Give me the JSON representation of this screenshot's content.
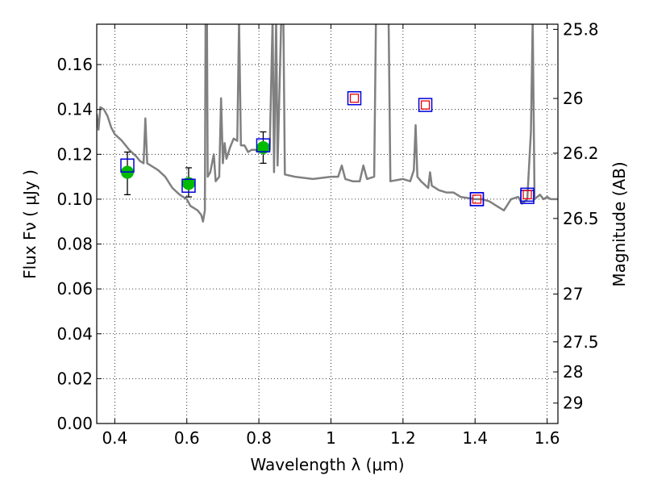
{
  "chart_data": {
    "type": "line",
    "title": "",
    "xlabel": "Wavelength  λ (μm)",
    "ylabel": "Flux  Fν  ( μJy )",
    "ylabel_right": "Magnitude (AB)",
    "xlim": [
      0.35,
      1.63
    ],
    "ylim": [
      0.0,
      0.178
    ],
    "grid": true,
    "grid_style": "dotted",
    "x_ticks": [
      0.4,
      0.6,
      0.8,
      1.0,
      1.2,
      1.4,
      1.6
    ],
    "x_tick_labels": [
      "0.4",
      "0.6",
      "0.8",
      "1",
      "1.2",
      "1.4",
      "1.6"
    ],
    "y_ticks": [
      0.0,
      0.02,
      0.04,
      0.06,
      0.08,
      0.1,
      0.12,
      0.14,
      0.16
    ],
    "y_tick_labels": [
      "0.00",
      "0.02",
      "0.04",
      "0.06",
      "0.08",
      "0.10",
      "0.12",
      "0.14",
      "0.16"
    ],
    "right_ticks": [
      {
        "label": "25.8",
        "flux": 0.1757
      },
      {
        "label": "26",
        "flux": 0.1449
      },
      {
        "label": "26.2",
        "flux": 0.1205
      },
      {
        "label": "26.5",
        "flux": 0.0914
      },
      {
        "label": "27",
        "flux": 0.0577
      },
      {
        "label": "27.5",
        "flux": 0.0364
      },
      {
        "label": "28",
        "flux": 0.023
      },
      {
        "label": "29",
        "flux": 0.0091
      }
    ],
    "series": [
      {
        "kind": "model-spectrum",
        "color": "#808080",
        "points": [
          [
            0.35,
            0.138
          ],
          [
            0.355,
            0.131
          ],
          [
            0.36,
            0.141
          ],
          [
            0.37,
            0.14
          ],
          [
            0.38,
            0.137
          ],
          [
            0.39,
            0.132
          ],
          [
            0.4,
            0.129
          ],
          [
            0.42,
            0.126
          ],
          [
            0.44,
            0.122
          ],
          [
            0.46,
            0.119
          ],
          [
            0.47,
            0.117
          ],
          [
            0.48,
            0.116
          ],
          [
            0.485,
            0.136
          ],
          [
            0.49,
            0.116
          ],
          [
            0.5,
            0.115
          ],
          [
            0.52,
            0.113
          ],
          [
            0.54,
            0.11
          ],
          [
            0.56,
            0.105
          ],
          [
            0.58,
            0.102
          ],
          [
            0.6,
            0.1
          ],
          [
            0.61,
            0.097
          ],
          [
            0.62,
            0.096
          ],
          [
            0.63,
            0.095
          ],
          [
            0.64,
            0.093
          ],
          [
            0.645,
            0.09
          ],
          [
            0.65,
            0.095
          ],
          [
            0.652,
            0.18
          ],
          [
            0.656,
            0.18
          ],
          [
            0.658,
            0.11
          ],
          [
            0.665,
            0.112
          ],
          [
            0.675,
            0.12
          ],
          [
            0.68,
            0.108
          ],
          [
            0.69,
            0.11
          ],
          [
            0.695,
            0.145
          ],
          [
            0.7,
            0.116
          ],
          [
            0.705,
            0.125
          ],
          [
            0.71,
            0.118
          ],
          [
            0.72,
            0.123
          ],
          [
            0.73,
            0.127
          ],
          [
            0.74,
            0.126
          ],
          [
            0.745,
            0.18
          ],
          [
            0.75,
            0.124
          ],
          [
            0.76,
            0.124
          ],
          [
            0.77,
            0.121
          ],
          [
            0.78,
            0.122
          ],
          [
            0.79,
            0.122
          ],
          [
            0.8,
            0.121
          ],
          [
            0.81,
            0.122
          ],
          [
            0.82,
            0.123
          ],
          [
            0.83,
            0.122
          ],
          [
            0.838,
            0.18
          ],
          [
            0.842,
            0.112
          ],
          [
            0.848,
            0.18
          ],
          [
            0.852,
            0.115
          ],
          [
            0.862,
            0.18
          ],
          [
            0.868,
            0.18
          ],
          [
            0.872,
            0.111
          ],
          [
            0.9,
            0.11
          ],
          [
            0.95,
            0.109
          ],
          [
            1.0,
            0.11
          ],
          [
            1.02,
            0.11
          ],
          [
            1.03,
            0.115
          ],
          [
            1.04,
            0.109
          ],
          [
            1.06,
            0.108
          ],
          [
            1.08,
            0.108
          ],
          [
            1.09,
            0.115
          ],
          [
            1.1,
            0.109
          ],
          [
            1.12,
            0.11
          ],
          [
            1.125,
            0.18
          ],
          [
            1.16,
            0.18
          ],
          [
            1.165,
            0.108
          ],
          [
            1.2,
            0.109
          ],
          [
            1.22,
            0.108
          ],
          [
            1.23,
            0.113
          ],
          [
            1.235,
            0.133
          ],
          [
            1.24,
            0.11
          ],
          [
            1.25,
            0.108
          ],
          [
            1.27,
            0.105
          ],
          [
            1.275,
            0.112
          ],
          [
            1.28,
            0.106
          ],
          [
            1.3,
            0.104
          ],
          [
            1.32,
            0.103
          ],
          [
            1.34,
            0.103
          ],
          [
            1.36,
            0.101
          ],
          [
            1.4,
            0.1
          ],
          [
            1.42,
            0.1
          ],
          [
            1.44,
            0.099
          ],
          [
            1.46,
            0.097
          ],
          [
            1.48,
            0.095
          ],
          [
            1.5,
            0.1
          ],
          [
            1.52,
            0.101
          ],
          [
            1.53,
            0.098
          ],
          [
            1.545,
            0.1
          ],
          [
            1.555,
            0.13
          ],
          [
            1.56,
            0.18
          ],
          [
            1.565,
            0.1
          ],
          [
            1.58,
            0.102
          ],
          [
            1.59,
            0.1
          ],
          [
            1.6,
            0.101
          ],
          [
            1.61,
            0.1
          ],
          [
            1.63,
            0.1
          ]
        ]
      },
      {
        "kind": "observed-photometry",
        "marker": "circle",
        "color": "#00bb00",
        "points": [
          {
            "x": 0.435,
            "y": 0.112,
            "err_low": 0.102,
            "err_high": 0.121
          },
          {
            "x": 0.605,
            "y": 0.107,
            "err_low": 0.101,
            "err_high": 0.114
          },
          {
            "x": 0.812,
            "y": 0.123,
            "err_low": 0.116,
            "err_high": 0.13
          }
        ]
      },
      {
        "kind": "model-photometry",
        "marker": "square",
        "color": "#0000dd",
        "points": [
          {
            "x": 0.435,
            "y": 0.115
          },
          {
            "x": 0.605,
            "y": 0.106
          },
          {
            "x": 0.812,
            "y": 0.124
          },
          {
            "x": 1.405,
            "y": 0.1
          },
          {
            "x": 1.545,
            "y": 0.101
          }
        ]
      },
      {
        "kind": "upper-limits",
        "marker": "square",
        "color": "#ee0000",
        "outer_color": "#0000dd",
        "points": [
          {
            "x": 1.065,
            "y": 0.145
          },
          {
            "x": 1.262,
            "y": 0.142
          },
          {
            "x": 1.405,
            "y": 0.1
          },
          {
            "x": 1.545,
            "y": 0.102
          }
        ]
      }
    ]
  }
}
